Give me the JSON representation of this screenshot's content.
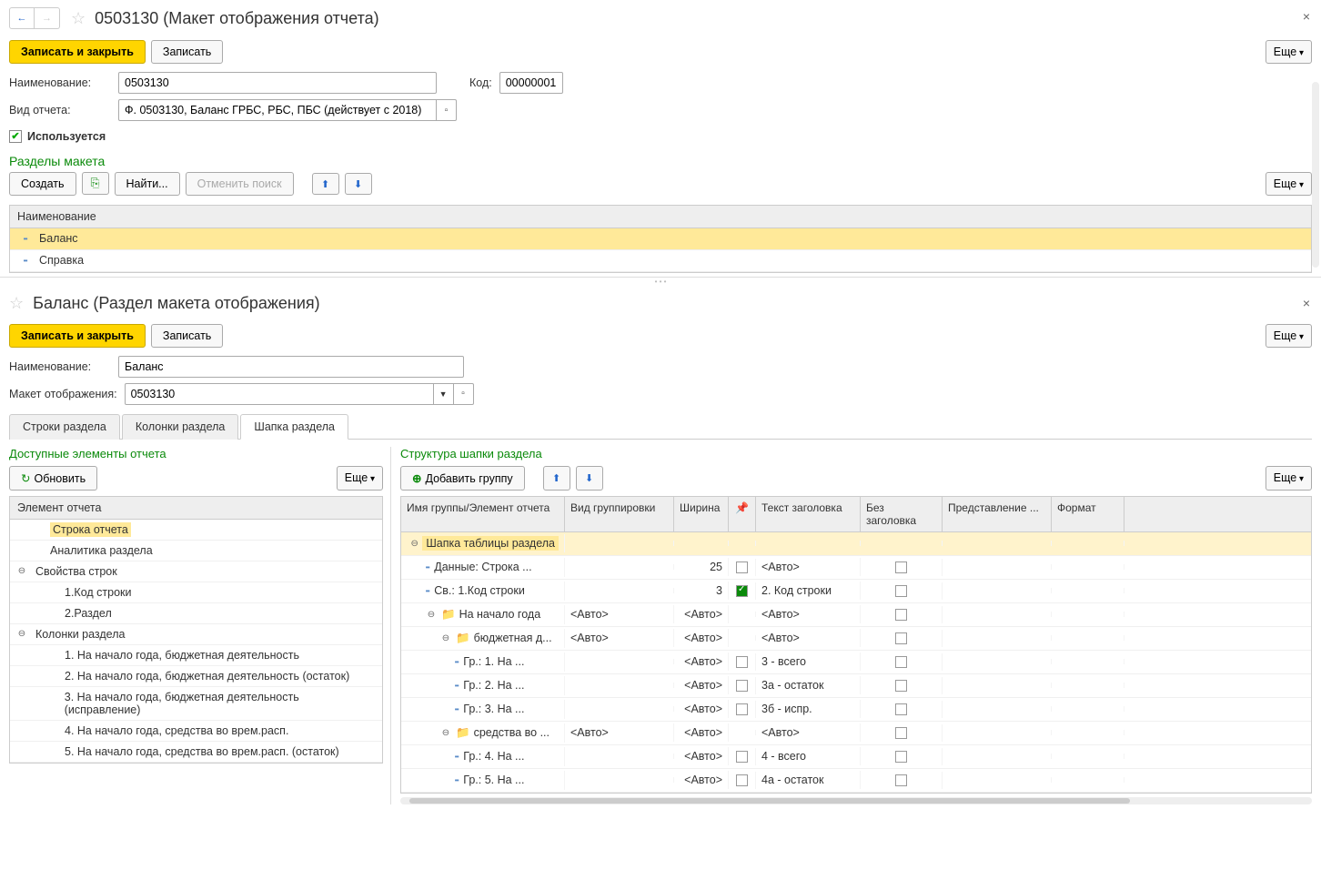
{
  "top": {
    "title": "0503130 (Макет отображения отчета)",
    "btn_save_close": "Записать и закрыть",
    "btn_save": "Записать",
    "btn_more": "Еще",
    "lbl_name": "Наименование:",
    "val_name": "0503130",
    "lbl_code": "Код:",
    "val_code": "00000001",
    "lbl_report_type": "Вид отчета:",
    "val_report_type": "Ф. 0503130, Баланс ГРБС, РБС, ПБС (действует с 2018)",
    "chk_used": "Используется",
    "section_title": "Разделы макета",
    "btn_create": "Создать",
    "btn_find": "Найти...",
    "btn_cancel_find": "Отменить поиск",
    "grid_header": "Наименование",
    "rows": [
      "Баланс",
      "Справка"
    ]
  },
  "bottom": {
    "title": "Баланс (Раздел макета отображения)",
    "btn_save_close": "Записать и закрыть",
    "btn_save": "Записать",
    "btn_more": "Еще",
    "lbl_name": "Наименование:",
    "val_name": "Баланс",
    "lbl_layout": "Макет отображения:",
    "val_layout": "0503130",
    "tabs": [
      "Строки раздела",
      "Колонки раздела",
      "Шапка раздела"
    ],
    "left": {
      "title": "Доступные элементы отчета",
      "btn_refresh": "Обновить",
      "btn_more": "Еще",
      "col_header": "Элемент отчета",
      "rows": [
        {
          "indent": 1,
          "text": "Строка отчета",
          "sel": true
        },
        {
          "indent": 1,
          "text": "Аналитика раздела"
        },
        {
          "indent": 0,
          "text": "Свойства строк",
          "exp": "⊖"
        },
        {
          "indent": 2,
          "text": "1.Код строки"
        },
        {
          "indent": 2,
          "text": "2.Раздел"
        },
        {
          "indent": 0,
          "text": "Колонки раздела",
          "exp": "⊖"
        },
        {
          "indent": 2,
          "text": "1. На начало года, бюджетная деятельность"
        },
        {
          "indent": 2,
          "text": "2. На начало года, бюджетная деятельность (остаток)"
        },
        {
          "indent": 2,
          "text": "3. На начало года, бюджетная деятельность (исправление)"
        },
        {
          "indent": 2,
          "text": "4. На начало года, средства во врем.расп."
        },
        {
          "indent": 2,
          "text": "5. На начало года, средства во врем.расп. (остаток)"
        }
      ]
    },
    "right": {
      "title": "Структура шапки раздела",
      "btn_add_group": "Добавить группу",
      "btn_more": "Еще",
      "cols": {
        "name": "Имя группы/Элемент отчета",
        "grp": "Вид группировки",
        "w": "Ширина",
        "hdr": "Текст заголовка",
        "nohdr": "Без заголовка",
        "rep": "Представление ...",
        "fmt": "Формат"
      },
      "rows": [
        {
          "indent": 0,
          "ico": "exp",
          "name": "Шапка таблицы раздела",
          "sel": true,
          "root": true
        },
        {
          "indent": 1,
          "ico": "dash",
          "name": "Данные: Строка ...",
          "w": "25",
          "cb": false,
          "hdr": "<Авто>",
          "nohdr": false
        },
        {
          "indent": 1,
          "ico": "dash",
          "name": "Св.: 1.Код строки",
          "w": "3",
          "cb": true,
          "hdr": "2. Код строки",
          "nohdr": false
        },
        {
          "indent": 1,
          "ico": "folder",
          "exp": "⊖",
          "name": "На начало года",
          "grp": "<Авто>",
          "w": "<Авто>",
          "hdr": "<Авто>",
          "nohdr": false
        },
        {
          "indent": 2,
          "ico": "folder",
          "exp": "⊖",
          "name": "бюджетная д...",
          "grp": "<Авто>",
          "w": "<Авто>",
          "hdr": "<Авто>",
          "nohdr": false
        },
        {
          "indent": 3,
          "ico": "dash",
          "name": "Гр.: 1. На ...",
          "w": "<Авто>",
          "cb": false,
          "hdr": "3 - всего",
          "nohdr": false
        },
        {
          "indent": 3,
          "ico": "dash",
          "name": "Гр.: 2. На ...",
          "w": "<Авто>",
          "cb": false,
          "hdr": "3а - остаток",
          "nohdr": false
        },
        {
          "indent": 3,
          "ico": "dash",
          "name": "Гр.: 3. На ...",
          "w": "<Авто>",
          "cb": false,
          "hdr": "3б - испр.",
          "nohdr": false
        },
        {
          "indent": 2,
          "ico": "folder",
          "exp": "⊖",
          "name": "средства во ...",
          "grp": "<Авто>",
          "w": "<Авто>",
          "hdr": "<Авто>",
          "nohdr": false
        },
        {
          "indent": 3,
          "ico": "dash",
          "name": "Гр.: 4. На ...",
          "w": "<Авто>",
          "cb": false,
          "hdr": "4 - всего",
          "nohdr": false
        },
        {
          "indent": 3,
          "ico": "dash",
          "name": "Гр.: 5. На ...",
          "w": "<Авто>",
          "cb": false,
          "hdr": "4а - остаток",
          "nohdr": false
        }
      ]
    }
  }
}
